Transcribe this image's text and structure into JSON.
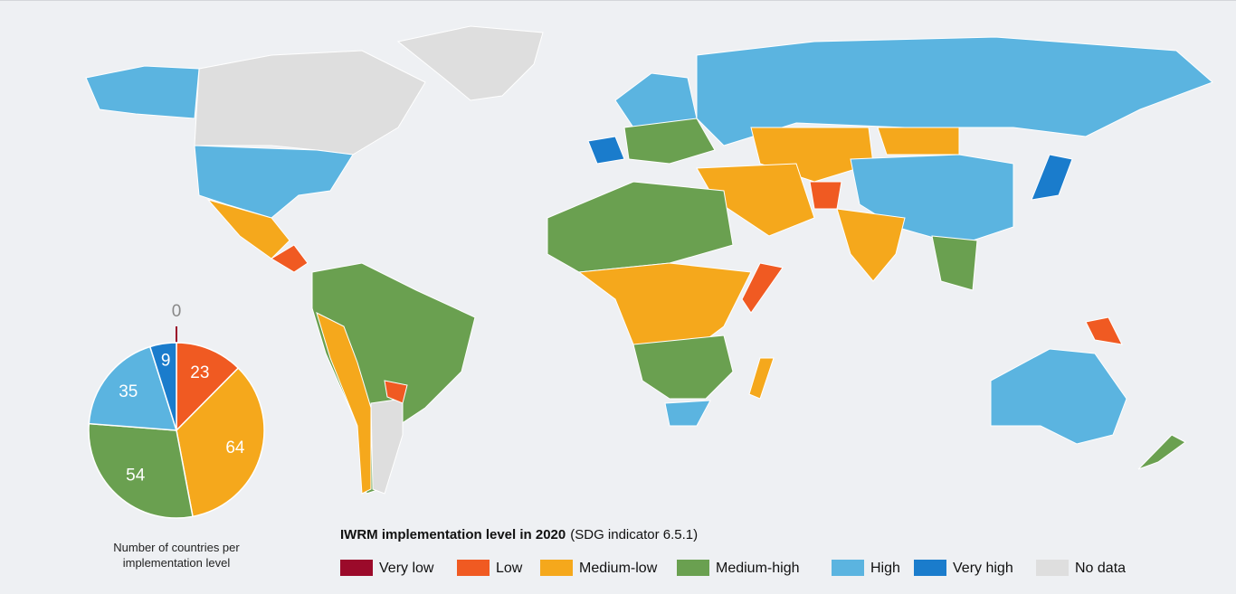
{
  "chart_data": {
    "type": "pie",
    "title": "IWRM implementation level in 2020",
    "subtitle": "(SDG indicator 6.5.1)",
    "caption": "Number of countries per implementation level",
    "categories": [
      "Very low",
      "Low",
      "Medium-low",
      "Medium-high",
      "High",
      "Very high"
    ],
    "values": [
      0,
      23,
      64,
      54,
      35,
      9
    ],
    "colors": [
      "#9b0a2a",
      "#f05a22",
      "#f5a81c",
      "#6aa050",
      "#5bb4e0",
      "#1a7ccc"
    ],
    "no_data": {
      "name": "No data",
      "color": "#dedede"
    }
  }
}
